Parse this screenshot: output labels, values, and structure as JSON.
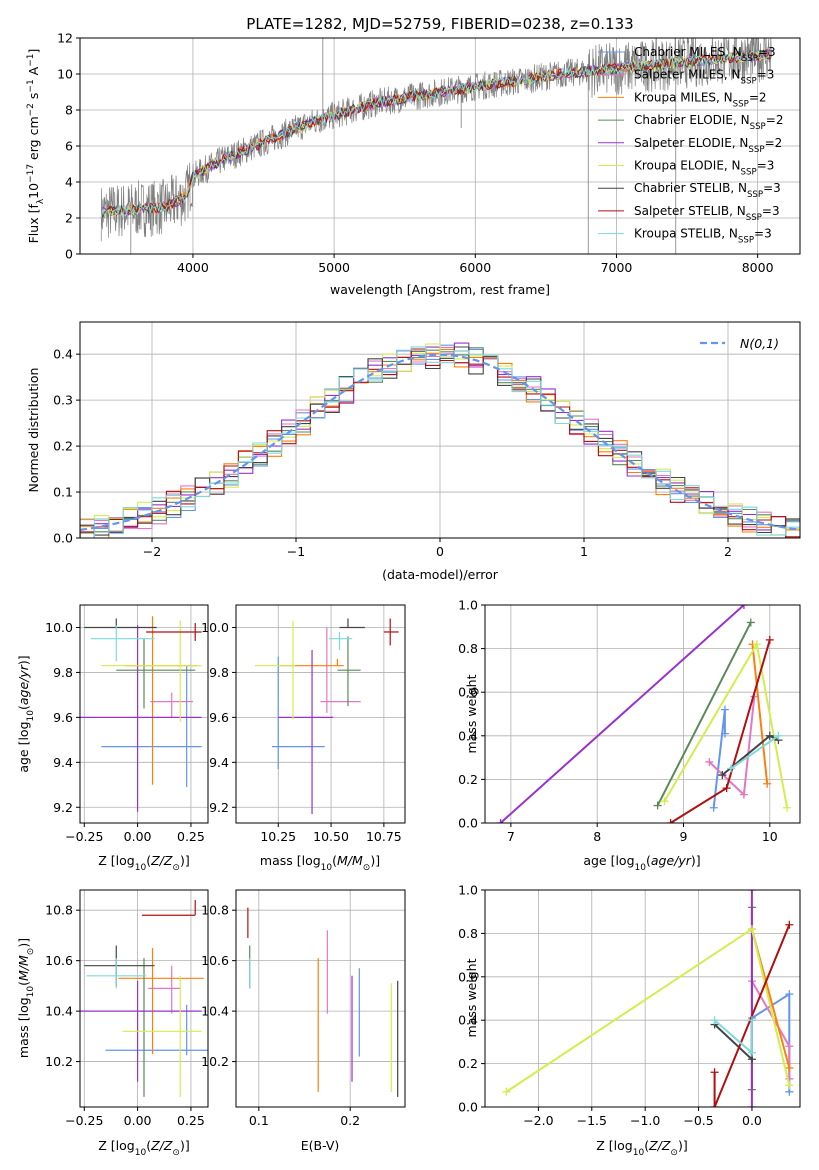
{
  "figure_title": "PLATE=1282, MJD=52759, FIBERID=0238, z=0.133",
  "colors": {
    "Chabrier MILES": "#6495ed",
    "Salpeter MILES": "#e377c2",
    "Kroupa MILES": "#ff7f0e",
    "Chabrier ELODIE": "#5a8a5a",
    "Salpeter ELODIE": "#9932cc",
    "Kroupa ELODIE": "#d4ed4e",
    "Chabrier STELIB": "#444444",
    "Salpeter STELIB": "#b01010",
    "Kroupa STELIB": "#7fd8dd",
    "data": "#808080"
  },
  "chart_data": [
    {
      "id": "spectrum",
      "type": "line",
      "title": "PLATE=1282, MJD=52759, FIBERID=0238, z=0.133",
      "xlabel": "wavelength [Angstrom, rest frame]",
      "ylabel": "Flux [f_λ 10^-17 erg cm^-2 s^-1 A^-1]",
      "xlim": [
        3200,
        8300
      ],
      "ylim": [
        0,
        12
      ],
      "xticks": [
        4000,
        5000,
        6000,
        7000,
        8000
      ],
      "yticks": [
        0,
        2,
        4,
        6,
        8,
        10,
        12
      ],
      "legend_placement": "right",
      "legend": [
        {
          "model": "Chabrier MILES",
          "label": "Chabrier MILES, N",
          "sub": "SSP",
          "suffix": "=3"
        },
        {
          "model": "Salpeter MILES",
          "label": "Salpeter MILES, N",
          "sub": "SSP",
          "suffix": "=3"
        },
        {
          "model": "Kroupa MILES",
          "label": "Kroupa MILES, N",
          "sub": "SSP",
          "suffix": "=2"
        },
        {
          "model": "Chabrier ELODIE",
          "label": "Chabrier ELODIE, N",
          "sub": "SSP",
          "suffix": "=2"
        },
        {
          "model": "Salpeter ELODIE",
          "label": "Salpeter ELODIE, N",
          "sub": "SSP",
          "suffix": "=2"
        },
        {
          "model": "Kroupa ELODIE",
          "label": "Kroupa ELODIE, N",
          "sub": "SSP",
          "suffix": "=3"
        },
        {
          "model": "Chabrier STELIB",
          "label": "Chabrier STELIB, N",
          "sub": "SSP",
          "suffix": "=3"
        },
        {
          "model": "Salpeter STELIB",
          "label": "Salpeter STELIB, N",
          "sub": "SSP",
          "suffix": "=3"
        },
        {
          "model": "Kroupa STELIB",
          "label": "Kroupa STELIB, N",
          "sub": "SSP",
          "suffix": "=3"
        }
      ],
      "continuum": {
        "x": [
          3350,
          3600,
          3800,
          3950,
          4000,
          4200,
          4500,
          4800,
          5000,
          5300,
          5600,
          6000,
          6300,
          6600,
          7000,
          7400,
          7800,
          8100
        ],
        "y": [
          2.3,
          2.5,
          2.6,
          3.2,
          4.3,
          5.2,
          6.2,
          7.2,
          7.7,
          8.4,
          8.8,
          9.3,
          9.6,
          10.0,
          10.3,
          10.6,
          10.9,
          11.1
        ]
      }
    },
    {
      "id": "residual_hist",
      "type": "line",
      "xlabel": "(data-model)/error",
      "ylabel": "Normed distribution",
      "xlim": [
        -2.5,
        2.5
      ],
      "ylim": [
        0,
        0.47
      ],
      "xticks": [
        -2,
        -1,
        0,
        1,
        2
      ],
      "yticks": [
        0.0,
        0.1,
        0.2,
        0.3,
        0.4
      ],
      "legend_placement": "top-right",
      "legend_label": "N(0,1)",
      "gaussian": {
        "mean": 0,
        "sigma": 1,
        "color": "#6495ed"
      },
      "bin_width": 0.1
    },
    {
      "id": "age_vs_Z",
      "type": "scatter",
      "xlabel": "Z [log10(Z/Z☉)]",
      "ylabel": "age [log10(age/yr)]",
      "xlim": [
        -0.27,
        0.33
      ],
      "ylim": [
        9.13,
        10.1
      ],
      "xticks": [
        -0.25,
        0.0,
        0.25
      ],
      "yticks": [
        9.2,
        9.4,
        9.6,
        9.8,
        10.0
      ],
      "points": [
        {
          "model": "Chabrier MILES",
          "x": 0.23,
          "xerr": [
            0.4,
            0.07
          ],
          "y": 9.47,
          "yerr": [
            0.18,
            0.36
          ]
        },
        {
          "model": "Salpeter MILES",
          "x": 0.16,
          "xerr": [
            0.1,
            0.1
          ],
          "y": 9.67,
          "yerr": [
            0.07,
            0.04
          ]
        },
        {
          "model": "Kroupa MILES",
          "x": 0.07,
          "xerr": [
            0.13,
            0.21
          ],
          "y": 9.83,
          "yerr": [
            0.53,
            0.22
          ]
        },
        {
          "model": "Chabrier ELODIE",
          "x": 0.03,
          "xerr": [
            0.13,
            0.24
          ],
          "y": 9.81,
          "yerr": [
            0.17,
            0.14
          ]
        },
        {
          "model": "Salpeter ELODIE",
          "x": 0.0,
          "xerr": [
            0.27,
            0.3
          ],
          "y": 9.6,
          "yerr": [
            0.42,
            0.41
          ]
        },
        {
          "model": "Kroupa ELODIE",
          "x": 0.2,
          "xerr": [
            0.37,
            0.1
          ],
          "y": 9.83,
          "yerr": [
            0.25,
            0.2
          ]
        },
        {
          "model": "Chabrier STELIB",
          "x": -0.1,
          "xerr": [
            0.15,
            0.19
          ],
          "y": 10.0,
          "yerr": [
            0.0,
            0.04
          ]
        },
        {
          "model": "Salpeter STELIB",
          "x": 0.27,
          "xerr": [
            0.23,
            0.03
          ],
          "y": 9.98,
          "yerr": [
            0.04,
            0.04
          ]
        },
        {
          "model": "Kroupa STELIB",
          "x": -0.1,
          "xerr": [
            0.12,
            0.18
          ],
          "y": 9.95,
          "yerr": [
            0.1,
            0.06
          ]
        }
      ]
    },
    {
      "id": "age_vs_mass",
      "type": "scatter",
      "xlabel": "mass [log10(M/M☉)]",
      "xlim": [
        10.05,
        10.85
      ],
      "ylim": [
        9.13,
        10.1
      ],
      "xticks": [
        10.25,
        10.5,
        10.75
      ],
      "yticks": [
        9.2,
        9.4,
        9.6,
        9.8,
        10.0
      ],
      "points": [
        {
          "model": "Chabrier MILES",
          "x": 10.25,
          "xerr": [
            0.03,
            0.22
          ],
          "y": 9.47,
          "yerr": [
            0.1,
            0.4
          ]
        },
        {
          "model": "Salpeter MILES",
          "x": 10.48,
          "xerr": [
            0.03,
            0.16
          ],
          "y": 9.67,
          "yerr": [
            0.05,
            0.33
          ]
        },
        {
          "model": "Kroupa MILES",
          "x": 10.53,
          "xerr": [
            0.27,
            0.03
          ],
          "y": 9.83,
          "yerr": [
            0.0,
            0.03
          ]
        },
        {
          "model": "Chabrier ELODIE",
          "x": 10.58,
          "xerr": [
            0.05,
            0.06
          ],
          "y": 9.81,
          "yerr": [
            0.16,
            0.15
          ]
        },
        {
          "model": "Salpeter ELODIE",
          "x": 10.41,
          "xerr": [
            0.16,
            0.1
          ],
          "y": 9.6,
          "yerr": [
            0.43,
            0.3
          ]
        },
        {
          "model": "Kroupa ELODIE",
          "x": 10.32,
          "xerr": [
            0.18,
            0.01
          ],
          "y": 9.83,
          "yerr": [
            0.24,
            0.2
          ]
        },
        {
          "model": "Chabrier STELIB",
          "x": 10.58,
          "xerr": [
            0.04,
            0.08
          ],
          "y": 10.0,
          "yerr": [
            0.0,
            0.04
          ]
        },
        {
          "model": "Salpeter STELIB",
          "x": 10.78,
          "xerr": [
            0.03,
            0.04
          ],
          "y": 9.98,
          "yerr": [
            0.06,
            0.06
          ]
        },
        {
          "model": "Kroupa STELIB",
          "x": 10.54,
          "xerr": [
            0.05,
            0.06
          ],
          "y": 9.95,
          "yerr": [
            0.05,
            0.03
          ]
        }
      ]
    },
    {
      "id": "mass_weight_vs_age",
      "type": "line",
      "xlabel": "age [log10(age/yr)]",
      "ylabel": "mass weight",
      "xlim": [
        6.7,
        10.35
      ],
      "ylim": [
        0,
        1
      ],
      "xticks": [
        7,
        8,
        9,
        10
      ],
      "yticks": [
        0.0,
        0.2,
        0.4,
        0.6,
        0.8,
        1.0
      ],
      "series": [
        {
          "model": "Chabrier MILES",
          "x": [
            9.35,
            9.48,
            9.48
          ],
          "y": [
            0.07,
            0.52,
            0.41
          ]
        },
        {
          "model": "Salpeter MILES",
          "x": [
            9.3,
            9.7,
            9.82
          ],
          "y": [
            0.28,
            0.13,
            0.58
          ]
        },
        {
          "model": "Kroupa MILES",
          "x": [
            9.8,
            9.97
          ],
          "y": [
            0.82,
            0.18
          ]
        },
        {
          "model": "Chabrier ELODIE",
          "x": [
            8.7,
            9.78
          ],
          "y": [
            0.08,
            0.92
          ]
        },
        {
          "model": "Salpeter ELODIE",
          "x": [
            6.88,
            9.7
          ],
          "y": [
            0.0,
            1.0
          ]
        },
        {
          "model": "Kroupa ELODIE",
          "x": [
            8.78,
            9.85,
            10.2
          ],
          "y": [
            0.1,
            0.82,
            0.07
          ]
        },
        {
          "model": "Chabrier STELIB",
          "x": [
            9.45,
            10.0,
            10.1
          ],
          "y": [
            0.22,
            0.4,
            0.38
          ]
        },
        {
          "model": "Salpeter STELIB",
          "x": [
            8.85,
            9.5,
            10.0
          ],
          "y": [
            0.0,
            0.16,
            0.84
          ]
        },
        {
          "model": "Kroupa STELIB",
          "x": [
            9.55,
            10.1
          ],
          "y": [
            0.25,
            0.4
          ]
        }
      ]
    },
    {
      "id": "mass_vs_Z",
      "type": "scatter",
      "xlabel": "Z [log10(Z/Z☉)]",
      "ylabel": "mass [log10(M/M☉)]",
      "xlim": [
        -0.27,
        0.33
      ],
      "ylim": [
        10.02,
        10.88
      ],
      "xticks": [
        -0.25,
        0.0,
        0.25
      ],
      "yticks": [
        10.2,
        10.4,
        10.6,
        10.8
      ],
      "points": [
        {
          "model": "Chabrier MILES",
          "x": 0.23,
          "xerr": [
            0.38,
            0.1
          ],
          "y": 10.245,
          "yerr": [
            0.02,
            0.18
          ]
        },
        {
          "model": "Salpeter MILES",
          "x": 0.16,
          "xerr": [
            0.11,
            0.04
          ],
          "y": 10.49,
          "yerr": [
            0.1,
            0.09
          ]
        },
        {
          "model": "Kroupa MILES",
          "x": 0.07,
          "xerr": [
            0.16,
            0.24
          ],
          "y": 10.53,
          "yerr": [
            0.3,
            0.12
          ]
        },
        {
          "model": "Chabrier ELODIE",
          "x": 0.03,
          "xerr": [
            0.02,
            0.0
          ],
          "y": 10.4,
          "yerr": [
            0.34,
            0.21
          ]
        },
        {
          "model": "Salpeter ELODIE",
          "x": 0.0,
          "xerr": [
            0.27,
            0.3
          ],
          "y": 10.4,
          "yerr": [
            0.28,
            0.12
          ]
        },
        {
          "model": "Kroupa ELODIE",
          "x": 0.2,
          "xerr": [
            0.27,
            0.1
          ],
          "y": 10.32,
          "yerr": [
            0.26,
            0.22
          ]
        },
        {
          "model": "Chabrier STELIB",
          "x": -0.1,
          "xerr": [
            0.15,
            0.18
          ],
          "y": 10.58,
          "yerr": [
            0.08,
            0.08
          ]
        },
        {
          "model": "Salpeter STELIB",
          "x": 0.27,
          "xerr": [
            0.25,
            0.0
          ],
          "y": 10.78,
          "yerr": [
            0.0,
            0.06
          ]
        },
        {
          "model": "Kroupa STELIB",
          "x": -0.1,
          "xerr": [
            0.14,
            0.14
          ],
          "y": 10.54,
          "yerr": [
            0.05,
            0.07
          ]
        }
      ]
    },
    {
      "id": "mass_vs_ebv",
      "type": "scatter",
      "xlabel": "E(B-V)",
      "xlim": [
        0.075,
        0.26
      ],
      "ylim": [
        10.02,
        10.88
      ],
      "xticks": [
        0.1,
        0.2
      ],
      "yticks": [
        10.2,
        10.4,
        10.6,
        10.8
      ],
      "points": [
        {
          "model": "Chabrier MILES",
          "x": 0.21,
          "y": 10.39,
          "yerr": [
            0.17,
            0.18
          ]
        },
        {
          "model": "Salpeter MILES",
          "x": 0.175,
          "y": 10.55,
          "yerr": [
            0.16,
            0.17
          ]
        },
        {
          "model": "Kroupa MILES",
          "x": 0.165,
          "y": 10.38,
          "yerr": [
            0.3,
            0.23
          ]
        },
        {
          "model": "Chabrier ELODIE",
          "x": 0.09,
          "y": 10.59,
          "yerr": [
            0.1,
            0.07
          ]
        },
        {
          "model": "Salpeter ELODIE",
          "x": 0.202,
          "y": 10.33,
          "yerr": [
            0.21,
            0.21
          ]
        },
        {
          "model": "Kroupa ELODIE",
          "x": 0.245,
          "y": 10.29,
          "yerr": [
            0.21,
            0.22
          ]
        },
        {
          "model": "Chabrier STELIB",
          "x": 0.252,
          "y": 10.29,
          "yerr": [
            0.23,
            0.23
          ]
        },
        {
          "model": "Salpeter STELIB",
          "x": 0.088,
          "y": 10.75,
          "yerr": [
            0.06,
            0.06
          ]
        },
        {
          "model": "Kroupa STELIB",
          "x": 0.09,
          "y": 10.55,
          "yerr": [
            0.06,
            0.06
          ]
        }
      ]
    },
    {
      "id": "mass_weight_vs_Z",
      "type": "line",
      "xlabel": "Z [log10(Z/Z☉)]",
      "ylabel": "mass weight",
      "xlim": [
        -2.5,
        0.45
      ],
      "ylim": [
        0,
        1
      ],
      "xticks": [
        -2.0,
        -1.5,
        -1.0,
        -0.5,
        0.0
      ],
      "yticks": [
        0.0,
        0.2,
        0.4,
        0.6,
        0.8,
        1.0
      ],
      "series": [
        {
          "model": "Chabrier MILES",
          "x": [
            0.0,
            0.35,
            0.35
          ],
          "y": [
            0.41,
            0.52,
            0.07
          ]
        },
        {
          "model": "Salpeter MILES",
          "x": [
            0.0,
            0.35,
            0.35
          ],
          "y": [
            0.58,
            0.28,
            0.13
          ]
        },
        {
          "model": "Kroupa MILES",
          "x": [
            0.0,
            0.35
          ],
          "y": [
            0.82,
            0.18
          ]
        },
        {
          "model": "Chabrier ELODIE",
          "x": [
            0.0,
            0.0
          ],
          "y": [
            0.92,
            0.08
          ]
        },
        {
          "model": "Salpeter ELODIE",
          "x": [
            0.0,
            0.0
          ],
          "y": [
            1.0,
            0.0
          ]
        },
        {
          "model": "Kroupa ELODIE",
          "x": [
            -2.3,
            0.0,
            0.35
          ],
          "y": [
            0.07,
            0.82,
            0.1
          ]
        },
        {
          "model": "Chabrier STELIB",
          "x": [
            -0.35,
            0.0,
            0.0
          ],
          "y": [
            0.38,
            0.22,
            0.4
          ]
        },
        {
          "model": "Salpeter STELIB",
          "x": [
            -0.35,
            -0.35,
            0.35
          ],
          "y": [
            0.16,
            0.0,
            0.84
          ]
        },
        {
          "model": "Kroupa STELIB",
          "x": [
            -0.35,
            0.0,
            0.0
          ],
          "y": [
            0.4,
            0.25,
            0.4
          ]
        }
      ]
    }
  ]
}
